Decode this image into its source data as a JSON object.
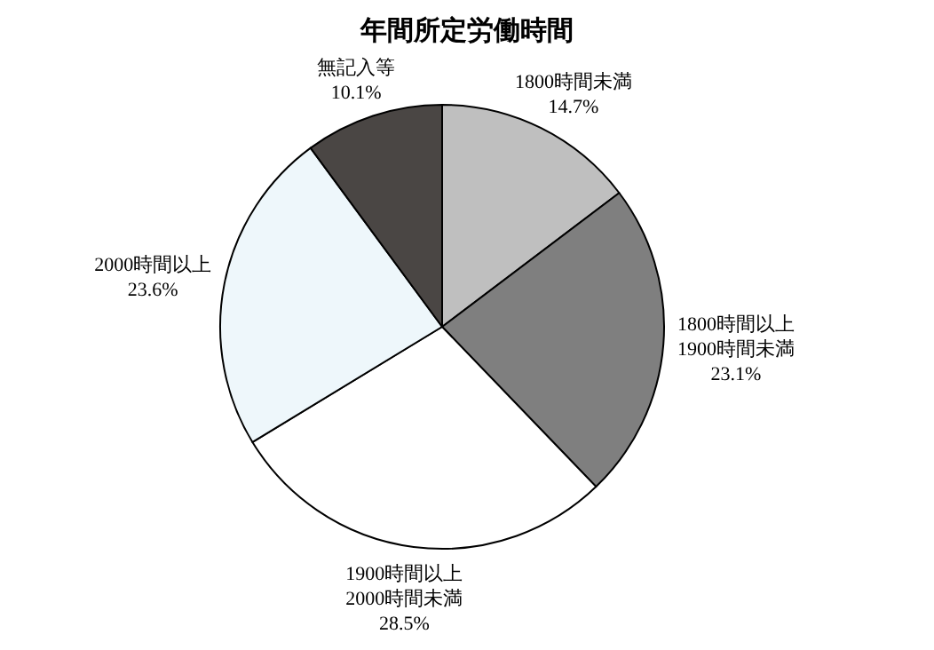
{
  "chart_data": {
    "type": "pie",
    "title": "年間所定労働時間",
    "categories": [
      "1800時間未満",
      "1800時間以上\n1900時間未満",
      "1900時間以上\n2000時間未満",
      "2000時間以上",
      "無記入等"
    ],
    "values": [
      14.7,
      23.1,
      28.5,
      23.6,
      10.1
    ],
    "value_labels": [
      "14.7%",
      "23.1%",
      "28.5%",
      "23.6%",
      "10.1%"
    ],
    "colors": [
      "#bfbfbf",
      "#7f7f7f",
      "#ffffff",
      "#eef7fb",
      "#4a4644"
    ]
  }
}
